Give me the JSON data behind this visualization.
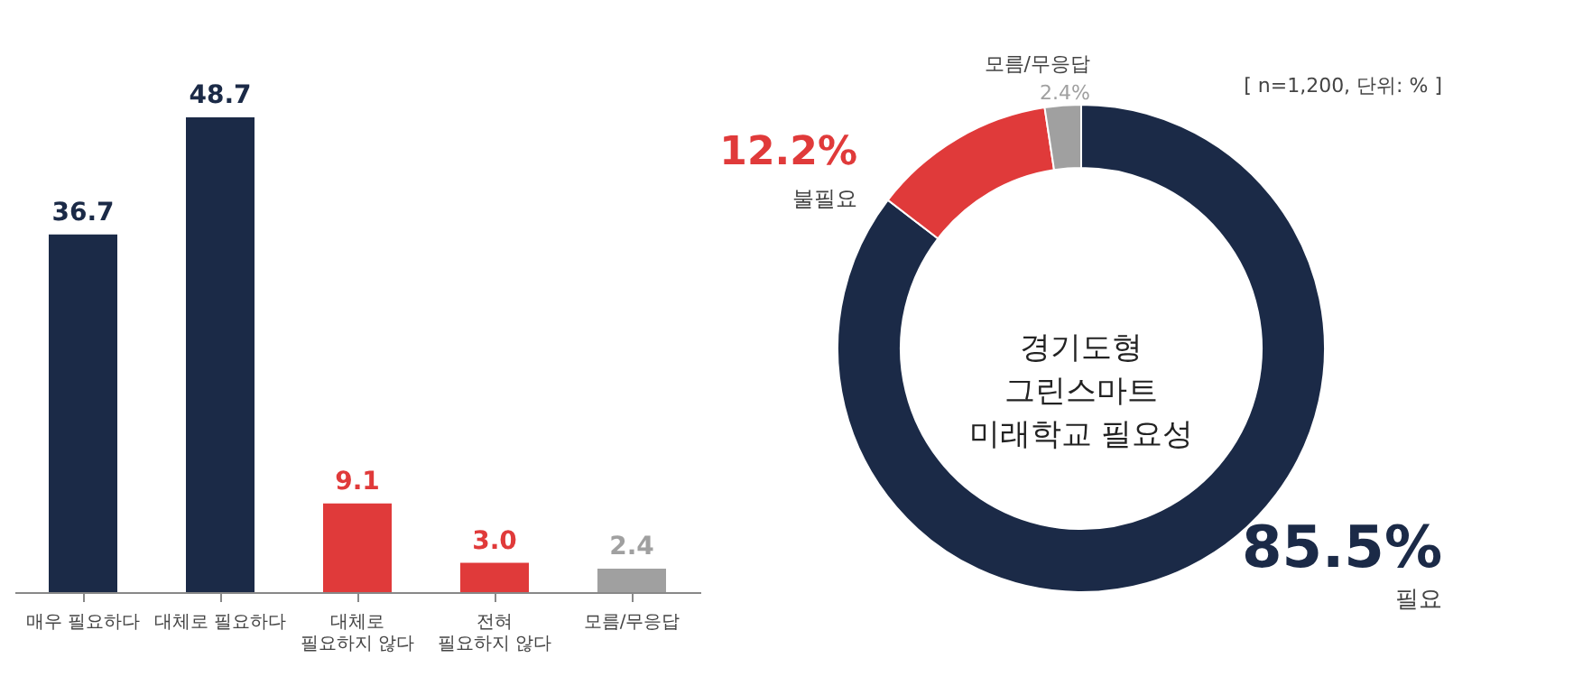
{
  "chart_data": [
    {
      "type": "bar",
      "categories": [
        "매우 필요하다",
        "대체로 필요하다",
        "대체로 필요하지 않다",
        "전혀 필요하지 않다",
        "모름/무응답"
      ],
      "values": [
        36.7,
        48.7,
        9.1,
        3.0,
        2.4
      ],
      "colors": [
        "#1b2a47",
        "#1b2a47",
        "#e03a3a",
        "#e03a3a",
        "#a0a0a0"
      ],
      "value_labels": [
        "36.7",
        "48.7",
        "9.1",
        "3.0",
        "2.4"
      ]
    },
    {
      "type": "donut",
      "title": "경기도형 그린스마트 미래학교 필요성",
      "categories": [
        "필요",
        "불필요",
        "모름/무응답"
      ],
      "values": [
        85.5,
        12.2,
        2.4
      ],
      "colors": [
        "#1b2a47",
        "#e03a3a",
        "#a0a0a0"
      ],
      "value_labels": [
        "85.5%",
        "12.2%",
        "2.4%"
      ],
      "annotations": [
        "[ n=1,200, 단위: % ]"
      ]
    }
  ]
}
